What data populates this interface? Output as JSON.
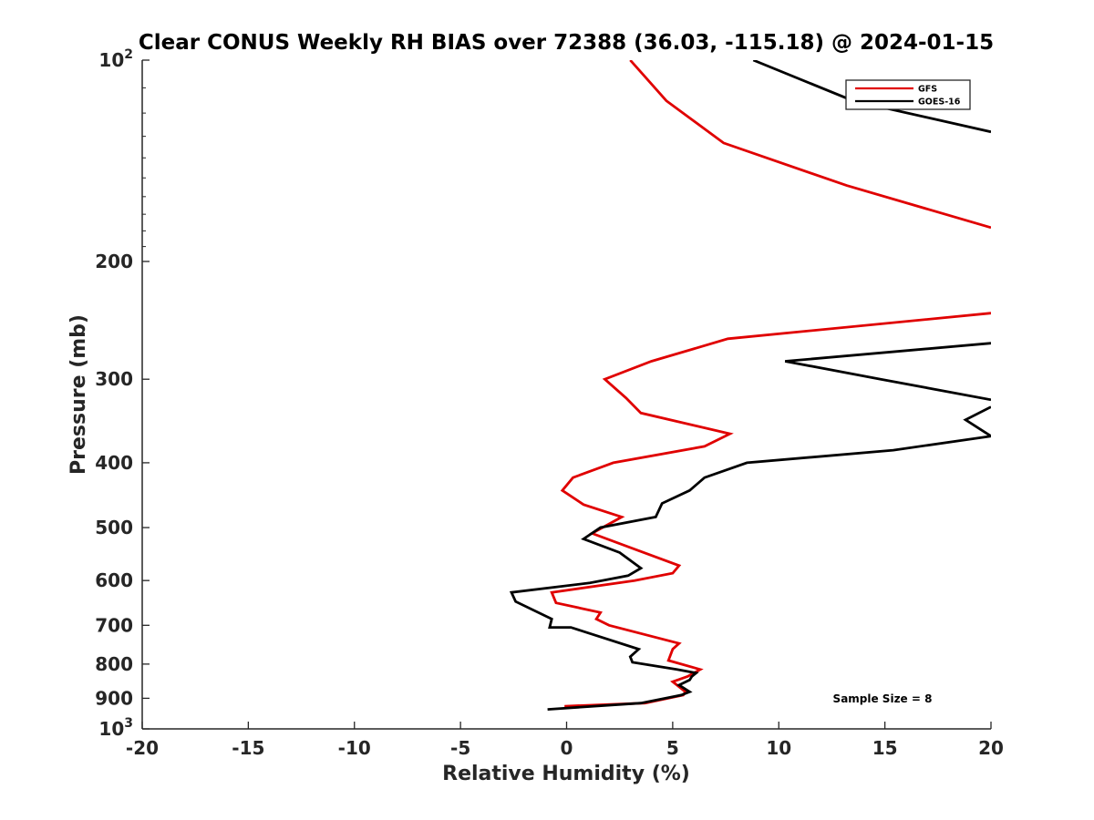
{
  "chart_data": {
    "type": "line",
    "title": "Clear CONUS Weekly RH BIAS over 72388 (36.03, -115.18) @ 2024-01-15",
    "xlabel": "Relative Humidity (%)",
    "ylabel": "Pressure (mb)",
    "xlim": [
      -20,
      20
    ],
    "ylim": [
      100,
      1000
    ],
    "yscale": "log",
    "y_reversed": true,
    "x_ticks": [
      "-20",
      "-15",
      "-10",
      "-5",
      "0",
      "5",
      "10",
      "15",
      "20"
    ],
    "y_ticks": [
      {
        "value": 100,
        "base": "10",
        "exp": "2"
      },
      {
        "value": 200,
        "base": "200",
        "exp": ""
      },
      {
        "value": 300,
        "base": "300",
        "exp": ""
      },
      {
        "value": 400,
        "base": "400",
        "exp": ""
      },
      {
        "value": 500,
        "base": "500",
        "exp": ""
      },
      {
        "value": 600,
        "base": "600",
        "exp": ""
      },
      {
        "value": 700,
        "base": "700",
        "exp": ""
      },
      {
        "value": 800,
        "base": "800",
        "exp": ""
      },
      {
        "value": 900,
        "base": "900",
        "exp": ""
      },
      {
        "value": 1000,
        "base": "10",
        "exp": "3"
      }
    ],
    "grid": false,
    "legend_position": "top-right",
    "annotation": "Sample Size = 8",
    "series": [
      {
        "name": "GFS",
        "color": "#e00000",
        "points": [
          [
            3.0,
            100
          ],
          [
            4.7,
            115
          ],
          [
            7.4,
            133
          ],
          [
            13.2,
            154
          ],
          [
            20.0,
            178
          ],
          [
            null,
            null
          ],
          [
            20.0,
            239
          ],
          [
            7.6,
            261
          ],
          [
            4.0,
            282
          ],
          [
            1.8,
            300
          ],
          [
            2.8,
            320
          ],
          [
            3.5,
            337
          ],
          [
            7.7,
            362
          ],
          [
            6.5,
            378
          ],
          [
            2.2,
            400
          ],
          [
            0.3,
            421
          ],
          [
            -0.2,
            440
          ],
          [
            0.8,
            462
          ],
          [
            2.6,
            482
          ],
          [
            1.2,
            510
          ],
          [
            3.3,
            540
          ],
          [
            5.3,
            570
          ],
          [
            5.0,
            585
          ],
          [
            3.2,
            600
          ],
          [
            -0.7,
            625
          ],
          [
            -0.5,
            648
          ],
          [
            1.6,
            670
          ],
          [
            1.4,
            685
          ],
          [
            2.0,
            700
          ],
          [
            5.3,
            745
          ],
          [
            5.0,
            760
          ],
          [
            4.8,
            790
          ],
          [
            6.3,
            815
          ],
          [
            5.7,
            835
          ],
          [
            5.0,
            850
          ],
          [
            5.2,
            860
          ],
          [
            5.6,
            880
          ],
          [
            5.5,
            890
          ],
          [
            3.7,
            915
          ],
          [
            -0.1,
            925
          ]
        ]
      },
      {
        "name": "GOES-16",
        "color": "#000000",
        "points": [
          [
            8.8,
            100
          ],
          [
            13.5,
            115
          ],
          [
            20.0,
            128
          ],
          [
            null,
            null
          ],
          [
            20.0,
            265
          ],
          [
            10.3,
            282
          ],
          [
            14.8,
            300
          ],
          [
            20.0,
            322
          ],
          [
            null,
            null
          ],
          [
            20.0,
            330
          ],
          [
            18.8,
            345
          ],
          [
            20.0,
            365
          ],
          [
            null,
            null
          ],
          [
            20.0,
            365
          ],
          [
            15.4,
            383
          ],
          [
            8.5,
            400
          ],
          [
            6.5,
            421
          ],
          [
            5.8,
            440
          ],
          [
            4.5,
            460
          ],
          [
            4.2,
            482
          ],
          [
            1.6,
            500
          ],
          [
            0.8,
            520
          ],
          [
            2.5,
            545
          ],
          [
            3.5,
            575
          ],
          [
            2.9,
            590
          ],
          [
            1.1,
            605
          ],
          [
            -2.6,
            625
          ],
          [
            -2.4,
            645
          ],
          [
            -0.7,
            685
          ],
          [
            -0.8,
            705
          ],
          [
            0.2,
            705
          ],
          [
            3.4,
            760
          ],
          [
            3.0,
            780
          ],
          [
            3.1,
            795
          ],
          [
            5.2,
            815
          ],
          [
            6.1,
            825
          ],
          [
            5.9,
            835
          ],
          [
            5.8,
            845
          ],
          [
            5.3,
            860
          ],
          [
            5.8,
            880
          ],
          [
            5.4,
            890
          ],
          [
            3.5,
            915
          ],
          [
            -0.9,
            935
          ]
        ]
      }
    ]
  }
}
